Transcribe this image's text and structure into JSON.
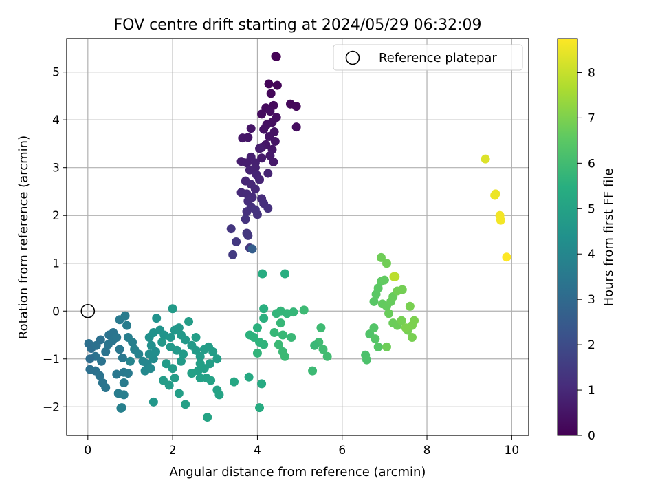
{
  "chart_data": {
    "type": "scatter",
    "title": "FOV centre drift starting at 2024/05/29 06:32:09",
    "xlabel": "Angular distance from reference (arcmin)",
    "ylabel": "Rotation from reference (arcmin)",
    "xlim": [
      -0.5,
      10.4
    ],
    "ylim": [
      -2.6,
      5.7
    ],
    "x_ticks": [
      "0",
      "2",
      "4",
      "6",
      "8",
      "10"
    ],
    "x_tick_values": [
      0,
      2,
      4,
      6,
      8,
      10
    ],
    "y_ticks": [
      "−2",
      "−1",
      "0",
      "1",
      "2",
      "3",
      "4",
      "5"
    ],
    "y_tick_values": [
      -2,
      -1,
      0,
      1,
      2,
      3,
      4,
      5
    ],
    "grid": true,
    "legend": {
      "position": "top-right",
      "entries": [
        {
          "label": "Reference platepar",
          "marker": "open-circle"
        }
      ]
    },
    "reference_point": {
      "x": 0,
      "y": 0
    },
    "colorbar": {
      "label": "Hours from first FF file",
      "colormap": "viridis",
      "range": [
        0,
        8.75
      ],
      "ticks": [
        "0",
        "1",
        "2",
        "3",
        "4",
        "5",
        "6",
        "7",
        "8"
      ],
      "tick_values": [
        0,
        1,
        2,
        3,
        4,
        5,
        6,
        7,
        8
      ]
    },
    "points": [
      {
        "x": 4.45,
        "y": 5.32,
        "t": 0.0
      },
      {
        "x": 4.43,
        "y": 5.33,
        "t": 0.03
      },
      {
        "x": 4.27,
        "y": 4.75,
        "t": 0.1
      },
      {
        "x": 4.47,
        "y": 4.72,
        "t": 0.12
      },
      {
        "x": 4.32,
        "y": 4.55,
        "t": 0.15
      },
      {
        "x": 4.78,
        "y": 4.33,
        "t": 0.18
      },
      {
        "x": 4.92,
        "y": 4.28,
        "t": 0.2
      },
      {
        "x": 4.38,
        "y": 4.3,
        "t": 0.22
      },
      {
        "x": 4.2,
        "y": 4.25,
        "t": 0.25
      },
      {
        "x": 4.1,
        "y": 4.12,
        "t": 0.27
      },
      {
        "x": 4.3,
        "y": 4.18,
        "t": 0.3
      },
      {
        "x": 4.45,
        "y": 4.05,
        "t": 0.32
      },
      {
        "x": 4.35,
        "y": 3.95,
        "t": 0.35
      },
      {
        "x": 4.22,
        "y": 3.9,
        "t": 0.37
      },
      {
        "x": 4.15,
        "y": 3.8,
        "t": 0.4
      },
      {
        "x": 4.4,
        "y": 3.75,
        "t": 0.42
      },
      {
        "x": 4.92,
        "y": 3.85,
        "t": 0.3
      },
      {
        "x": 4.28,
        "y": 3.65,
        "t": 0.45
      },
      {
        "x": 3.85,
        "y": 3.82,
        "t": 0.5
      },
      {
        "x": 3.65,
        "y": 3.62,
        "t": 0.55
      },
      {
        "x": 3.78,
        "y": 3.63,
        "t": 0.52
      },
      {
        "x": 4.42,
        "y": 3.55,
        "t": 0.47
      },
      {
        "x": 4.2,
        "y": 3.48,
        "t": 0.5
      },
      {
        "x": 4.35,
        "y": 3.38,
        "t": 0.55
      },
      {
        "x": 4.1,
        "y": 3.42,
        "t": 0.6
      },
      {
        "x": 4.3,
        "y": 3.25,
        "t": 0.62
      },
      {
        "x": 4.1,
        "y": 3.2,
        "t": 0.65
      },
      {
        "x": 4.38,
        "y": 3.12,
        "t": 0.6
      },
      {
        "x": 3.62,
        "y": 3.13,
        "t": 0.7
      },
      {
        "x": 3.75,
        "y": 3.1,
        "t": 0.72
      },
      {
        "x": 3.85,
        "y": 3.22,
        "t": 0.75
      },
      {
        "x": 3.95,
        "y": 3.1,
        "t": 0.78
      },
      {
        "x": 4.05,
        "y": 3.4,
        "t": 0.7
      },
      {
        "x": 3.95,
        "y": 3.0,
        "t": 0.82
      },
      {
        "x": 3.82,
        "y": 2.95,
        "t": 0.85
      },
      {
        "x": 4.25,
        "y": 2.88,
        "t": 0.88
      },
      {
        "x": 3.98,
        "y": 2.85,
        "t": 0.9
      },
      {
        "x": 4.05,
        "y": 2.75,
        "t": 0.92
      },
      {
        "x": 3.72,
        "y": 2.72,
        "t": 0.95
      },
      {
        "x": 3.85,
        "y": 2.65,
        "t": 0.97
      },
      {
        "x": 3.95,
        "y": 2.55,
        "t": 1.0
      },
      {
        "x": 3.62,
        "y": 2.48,
        "t": 1.02
      },
      {
        "x": 3.75,
        "y": 2.45,
        "t": 1.05
      },
      {
        "x": 3.88,
        "y": 2.38,
        "t": 1.08
      },
      {
        "x": 4.1,
        "y": 2.35,
        "t": 1.1
      },
      {
        "x": 3.78,
        "y": 2.3,
        "t": 1.12
      },
      {
        "x": 4.15,
        "y": 2.25,
        "t": 1.15
      },
      {
        "x": 3.85,
        "y": 2.18,
        "t": 1.18
      },
      {
        "x": 4.25,
        "y": 2.15,
        "t": 1.2
      },
      {
        "x": 3.75,
        "y": 2.08,
        "t": 1.22
      },
      {
        "x": 4.0,
        "y": 2.02,
        "t": 1.25
      },
      {
        "x": 3.95,
        "y": 2.12,
        "t": 1.28
      },
      {
        "x": 3.72,
        "y": 1.92,
        "t": 1.3
      },
      {
        "x": 3.38,
        "y": 1.72,
        "t": 1.35
      },
      {
        "x": 3.75,
        "y": 1.63,
        "t": 1.38
      },
      {
        "x": 3.78,
        "y": 1.58,
        "t": 1.4
      },
      {
        "x": 3.5,
        "y": 1.45,
        "t": 1.42
      },
      {
        "x": 3.82,
        "y": 1.32,
        "t": 1.45
      },
      {
        "x": 3.42,
        "y": 1.18,
        "t": 1.48
      },
      {
        "x": 3.88,
        "y": 1.3,
        "t": 2.6
      },
      {
        "x": 0.02,
        "y": -0.68,
        "t": 3.2
      },
      {
        "x": 0.08,
        "y": -0.78,
        "t": 3.15
      },
      {
        "x": 0.2,
        "y": -0.72,
        "t": 3.25
      },
      {
        "x": 0.3,
        "y": -0.6,
        "t": 3.22
      },
      {
        "x": 0.5,
        "y": -0.5,
        "t": 3.3
      },
      {
        "x": 0.6,
        "y": -0.45,
        "t": 3.35
      },
      {
        "x": 0.18,
        "y": -0.95,
        "t": 3.28
      },
      {
        "x": 0.05,
        "y": -1.0,
        "t": 3.1
      },
      {
        "x": 0.32,
        "y": -1.05,
        "t": 3.3
      },
      {
        "x": 0.42,
        "y": -0.85,
        "t": 3.32
      },
      {
        "x": 0.48,
        "y": -0.7,
        "t": 3.35
      },
      {
        "x": 0.58,
        "y": -0.62,
        "t": 3.4
      },
      {
        "x": 0.68,
        "y": -0.55,
        "t": 3.42
      },
      {
        "x": 0.75,
        "y": -0.8,
        "t": 3.45
      },
      {
        "x": 0.82,
        "y": -0.98,
        "t": 3.5
      },
      {
        "x": 0.05,
        "y": -1.22,
        "t": 3.2
      },
      {
        "x": 0.18,
        "y": -1.25,
        "t": 3.25
      },
      {
        "x": 0.28,
        "y": -1.35,
        "t": 3.3
      },
      {
        "x": 0.35,
        "y": -1.5,
        "t": 3.35
      },
      {
        "x": 0.42,
        "y": -1.6,
        "t": 3.4
      },
      {
        "x": 0.68,
        "y": -1.32,
        "t": 3.45
      },
      {
        "x": 0.85,
        "y": -1.28,
        "t": 3.5
      },
      {
        "x": 0.95,
        "y": -1.3,
        "t": 3.55
      },
      {
        "x": 0.85,
        "y": -1.5,
        "t": 3.6
      },
      {
        "x": 0.72,
        "y": -1.72,
        "t": 3.65
      },
      {
        "x": 0.85,
        "y": -1.75,
        "t": 3.7
      },
      {
        "x": 0.8,
        "y": -2.02,
        "t": 3.75
      },
      {
        "x": 0.78,
        "y": -2.03,
        "t": 3.78
      },
      {
        "x": 0.75,
        "y": -0.18,
        "t": 3.55
      },
      {
        "x": 0.88,
        "y": -0.1,
        "t": 3.6
      },
      {
        "x": 0.92,
        "y": -0.3,
        "t": 3.65
      },
      {
        "x": 0.95,
        "y": -0.55,
        "t": 3.7
      },
      {
        "x": 1.05,
        "y": -0.65,
        "t": 3.75
      },
      {
        "x": 1.1,
        "y": -0.8,
        "t": 3.8
      },
      {
        "x": 1.2,
        "y": -0.9,
        "t": 3.85
      },
      {
        "x": 1.0,
        "y": -1.05,
        "t": 3.9
      },
      {
        "x": 1.3,
        "y": -1.05,
        "t": 3.95
      },
      {
        "x": 1.4,
        "y": -1.1,
        "t": 4.0
      },
      {
        "x": 1.35,
        "y": -1.25,
        "t": 4.05
      },
      {
        "x": 1.48,
        "y": -1.2,
        "t": 4.1
      },
      {
        "x": 1.55,
        "y": -1.0,
        "t": 4.15
      },
      {
        "x": 1.45,
        "y": -0.9,
        "t": 4.2
      },
      {
        "x": 1.6,
        "y": -0.85,
        "t": 4.25
      },
      {
        "x": 1.5,
        "y": -0.72,
        "t": 4.3
      },
      {
        "x": 1.45,
        "y": -0.55,
        "t": 4.35
      },
      {
        "x": 1.55,
        "y": -0.45,
        "t": 4.4
      },
      {
        "x": 1.7,
        "y": -0.4,
        "t": 4.45
      },
      {
        "x": 1.8,
        "y": -0.5,
        "t": 4.5
      },
      {
        "x": 1.95,
        "y": -0.55,
        "t": 4.55
      },
      {
        "x": 2.05,
        "y": -0.4,
        "t": 4.6
      },
      {
        "x": 2.15,
        "y": -0.35,
        "t": 4.62
      },
      {
        "x": 2.2,
        "y": -0.5,
        "t": 4.65
      },
      {
        "x": 2.3,
        "y": -0.6,
        "t": 4.68
      },
      {
        "x": 2.45,
        "y": -0.72,
        "t": 4.7
      },
      {
        "x": 2.55,
        "y": -0.82,
        "t": 4.72
      },
      {
        "x": 2.65,
        "y": -0.95,
        "t": 4.75
      },
      {
        "x": 2.75,
        "y": -0.8,
        "t": 4.78
      },
      {
        "x": 2.85,
        "y": -0.75,
        "t": 4.8
      },
      {
        "x": 2.95,
        "y": -0.85,
        "t": 4.82
      },
      {
        "x": 3.05,
        "y": -1.0,
        "t": 4.85
      },
      {
        "x": 2.88,
        "y": -1.1,
        "t": 4.87
      },
      {
        "x": 2.75,
        "y": -1.2,
        "t": 4.9
      },
      {
        "x": 2.6,
        "y": -1.25,
        "t": 4.92
      },
      {
        "x": 2.45,
        "y": -1.3,
        "t": 4.94
      },
      {
        "x": 2.65,
        "y": -1.4,
        "t": 4.96
      },
      {
        "x": 2.8,
        "y": -1.4,
        "t": 4.98
      },
      {
        "x": 2.9,
        "y": -1.45,
        "t": 5.0
      },
      {
        "x": 3.05,
        "y": -1.65,
        "t": 5.02
      },
      {
        "x": 3.1,
        "y": -1.75,
        "t": 5.04
      },
      {
        "x": 2.82,
        "y": -2.22,
        "t": 5.06
      },
      {
        "x": 2.3,
        "y": -1.95,
        "t": 4.9
      },
      {
        "x": 2.15,
        "y": -1.72,
        "t": 4.85
      },
      {
        "x": 1.92,
        "y": -1.55,
        "t": 4.8
      },
      {
        "x": 1.78,
        "y": -1.45,
        "t": 4.78
      },
      {
        "x": 2.05,
        "y": -1.4,
        "t": 4.82
      },
      {
        "x": 2.0,
        "y": -1.2,
        "t": 4.76
      },
      {
        "x": 1.85,
        "y": -1.1,
        "t": 4.74
      },
      {
        "x": 2.2,
        "y": -1.05,
        "t": 4.72
      },
      {
        "x": 2.25,
        "y": -0.9,
        "t": 4.7
      },
      {
        "x": 2.1,
        "y": -0.82,
        "t": 4.68
      },
      {
        "x": 1.95,
        "y": -0.75,
        "t": 4.66
      },
      {
        "x": 1.75,
        "y": -0.65,
        "t": 4.64
      },
      {
        "x": 1.55,
        "y": -1.9,
        "t": 4.6
      },
      {
        "x": 1.62,
        "y": -0.15,
        "t": 4.4
      },
      {
        "x": 2.0,
        "y": 0.05,
        "t": 4.7
      },
      {
        "x": 2.38,
        "y": -0.22,
        "t": 4.8
      },
      {
        "x": 2.55,
        "y": -0.55,
        "t": 4.85
      },
      {
        "x": 2.65,
        "y": -1.1,
        "t": 4.9
      },
      {
        "x": 3.45,
        "y": -1.48,
        "t": 5.2
      },
      {
        "x": 3.8,
        "y": -1.38,
        "t": 5.25
      },
      {
        "x": 4.1,
        "y": -1.52,
        "t": 5.3
      },
      {
        "x": 4.05,
        "y": -2.02,
        "t": 5.35
      },
      {
        "x": 4.12,
        "y": 0.78,
        "t": 5.4
      },
      {
        "x": 4.65,
        "y": 0.78,
        "t": 5.45
      },
      {
        "x": 4.15,
        "y": 0.05,
        "t": 5.5
      },
      {
        "x": 4.15,
        "y": -0.15,
        "t": 5.52
      },
      {
        "x": 4.0,
        "y": -0.35,
        "t": 5.55
      },
      {
        "x": 3.82,
        "y": -0.5,
        "t": 5.58
      },
      {
        "x": 3.92,
        "y": -0.55,
        "t": 5.6
      },
      {
        "x": 4.05,
        "y": -0.65,
        "t": 5.62
      },
      {
        "x": 4.15,
        "y": -0.7,
        "t": 5.65
      },
      {
        "x": 4.0,
        "y": -0.88,
        "t": 5.68
      },
      {
        "x": 4.45,
        "y": -0.05,
        "t": 5.7
      },
      {
        "x": 4.55,
        "y": 0.0,
        "t": 5.72
      },
      {
        "x": 4.7,
        "y": -0.05,
        "t": 5.74
      },
      {
        "x": 4.85,
        "y": -0.02,
        "t": 5.76
      },
      {
        "x": 4.55,
        "y": -0.25,
        "t": 5.78
      },
      {
        "x": 4.4,
        "y": -0.45,
        "t": 5.8
      },
      {
        "x": 4.6,
        "y": -0.5,
        "t": 5.82
      },
      {
        "x": 4.8,
        "y": -0.55,
        "t": 5.84
      },
      {
        "x": 4.5,
        "y": -0.7,
        "t": 5.86
      },
      {
        "x": 4.6,
        "y": -0.85,
        "t": 5.88
      },
      {
        "x": 4.65,
        "y": -0.95,
        "t": 5.9
      },
      {
        "x": 5.1,
        "y": 0.02,
        "t": 5.92
      },
      {
        "x": 5.5,
        "y": -0.35,
        "t": 5.94
      },
      {
        "x": 5.45,
        "y": -0.65,
        "t": 5.96
      },
      {
        "x": 5.55,
        "y": -0.8,
        "t": 5.98
      },
      {
        "x": 5.65,
        "y": -0.95,
        "t": 6.0
      },
      {
        "x": 5.3,
        "y": -1.25,
        "t": 5.9
      },
      {
        "x": 5.35,
        "y": -0.72,
        "t": 5.85
      },
      {
        "x": 6.55,
        "y": -0.92,
        "t": 6.2
      },
      {
        "x": 6.58,
        "y": -1.02,
        "t": 6.22
      },
      {
        "x": 6.65,
        "y": -0.48,
        "t": 6.3
      },
      {
        "x": 6.75,
        "y": -0.35,
        "t": 6.35
      },
      {
        "x": 6.78,
        "y": -0.58,
        "t": 6.38
      },
      {
        "x": 6.85,
        "y": -0.75,
        "t": 6.4
      },
      {
        "x": 6.75,
        "y": 0.2,
        "t": 6.45
      },
      {
        "x": 6.8,
        "y": 0.35,
        "t": 6.48
      },
      {
        "x": 6.85,
        "y": 0.48,
        "t": 6.5
      },
      {
        "x": 6.92,
        "y": 0.62,
        "t": 6.55
      },
      {
        "x": 7.0,
        "y": 0.65,
        "t": 6.6
      },
      {
        "x": 6.95,
        "y": 0.15,
        "t": 6.62
      },
      {
        "x": 7.05,
        "y": 0.1,
        "t": 6.65
      },
      {
        "x": 7.15,
        "y": 0.2,
        "t": 6.68
      },
      {
        "x": 7.2,
        "y": 0.3,
        "t": 6.7
      },
      {
        "x": 7.1,
        "y": -0.05,
        "t": 6.72
      },
      {
        "x": 7.2,
        "y": -0.25,
        "t": 6.74
      },
      {
        "x": 7.3,
        "y": -0.3,
        "t": 6.76
      },
      {
        "x": 7.05,
        "y": -0.75,
        "t": 6.78
      },
      {
        "x": 6.92,
        "y": 1.12,
        "t": 6.8
      },
      {
        "x": 7.05,
        "y": 1.0,
        "t": 6.82
      },
      {
        "x": 7.3,
        "y": 0.42,
        "t": 6.84
      },
      {
        "x": 7.42,
        "y": 0.45,
        "t": 6.86
      },
      {
        "x": 7.4,
        "y": -0.2,
        "t": 6.88
      },
      {
        "x": 7.55,
        "y": -0.4,
        "t": 6.9
      },
      {
        "x": 7.65,
        "y": -0.55,
        "t": 6.92
      },
      {
        "x": 7.6,
        "y": 0.1,
        "t": 6.94
      },
      {
        "x": 7.65,
        "y": -0.3,
        "t": 6.96
      },
      {
        "x": 7.7,
        "y": -0.2,
        "t": 6.98
      },
      {
        "x": 7.5,
        "y": -0.35,
        "t": 7.0
      },
      {
        "x": 7.25,
        "y": 0.72,
        "t": 7.8
      },
      {
        "x": 7.22,
        "y": 0.72,
        "t": 7.85
      },
      {
        "x": 9.38,
        "y": 3.18,
        "t": 8.3
      },
      {
        "x": 9.62,
        "y": 2.45,
        "t": 8.5
      },
      {
        "x": 9.6,
        "y": 2.42,
        "t": 8.52
      },
      {
        "x": 9.72,
        "y": 2.0,
        "t": 8.6
      },
      {
        "x": 9.74,
        "y": 1.9,
        "t": 8.62
      },
      {
        "x": 9.88,
        "y": 1.13,
        "t": 8.75
      }
    ]
  }
}
